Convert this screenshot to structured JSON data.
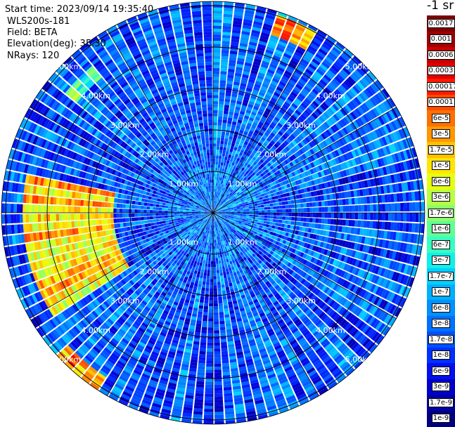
{
  "header": {
    "start_time": "Start time: 2023/09/14 19:35:40",
    "instrument": "WLS200s-181",
    "field": "Field: BETA",
    "elevation": "Elevation(deg): 35.30",
    "nrays": "NRays: 120"
  },
  "colorbar": {
    "units": "-1 sr",
    "labels": [
      "0.0017",
      "0.001",
      "0.0006",
      "0.0003",
      "0.00017",
      "0.0001",
      "6e-5",
      "3e-5",
      "1.7e-5",
      "1e-5",
      "6e-6",
      "3e-6",
      "1.7e-6",
      "1e-6",
      "6e-7",
      "3e-7",
      "1.7e-7",
      "1e-7",
      "6e-8",
      "3e-8",
      "1.7e-8",
      "1e-8",
      "6e-9",
      "3e-9",
      "1.7e-9",
      "1e-9"
    ],
    "colors": [
      "#800000",
      "#a00000",
      "#c80000",
      "#e60000",
      "#ff1a00",
      "#ff4a00",
      "#ff7000",
      "#ff9800",
      "#ffc000",
      "#ffe600",
      "#e6ff10",
      "#b8ff40",
      "#8cff6a",
      "#60ff96",
      "#38ffc0",
      "#10f0e8",
      "#00d0ff",
      "#00b0ff",
      "#0090ff",
      "#0070ff",
      "#0050ff",
      "#0030ff",
      "#0010ee",
      "#0000cc",
      "#0000a8",
      "#000080"
    ],
    "boxed_from_index": 0
  },
  "range_labels": [
    "1.00km",
    "2.00km",
    "3.00km",
    "4.00km",
    "5.00km"
  ],
  "chart_data": {
    "type": "heatmap",
    "projection": "polar PPI (plan position indicator)",
    "quantity": "BETA",
    "rays": 120,
    "range_rings_km": [
      1,
      2,
      3,
      4,
      5
    ],
    "max_range_km": 5.1,
    "spokes_deg": [
      0,
      30,
      60,
      90,
      120,
      150,
      180,
      210,
      240,
      270,
      300,
      330
    ],
    "color_scale": "log",
    "color_min": 1e-09,
    "color_max": 0.0017,
    "background_level": 2e-08,
    "features": [
      {
        "label": "arc_west",
        "azimuth_deg": [
          238,
          282
        ],
        "range_km": [
          2.4,
          4.6
        ],
        "level": 1.5e-05
      },
      {
        "label": "arc_southwest",
        "azimuth_deg": [
          213,
          228
        ],
        "range_km": [
          4.7,
          5.1
        ],
        "level": 3e-05
      },
      {
        "label": "arc_northeast",
        "azimuth_deg": [
          18,
          30
        ],
        "range_km": [
          4.5,
          5.0
        ],
        "level": 2e-05
      },
      {
        "label": "patch_northwest",
        "azimuth_deg": [
          310,
          320
        ],
        "range_km": [
          4.2,
          4.6
        ],
        "level": 5e-07
      }
    ]
  }
}
